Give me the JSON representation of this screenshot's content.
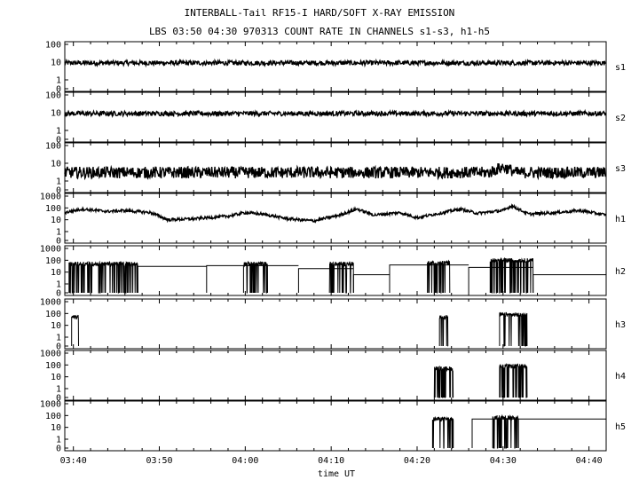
{
  "title": "INTERBALL-Tail RF15-I HARD/SOFT X-RAY EMISSION",
  "subtitle": "LBS 03:50 04:30 970313  COUNT RATE IN CHANNELS s1-s3, h1-h5",
  "chart_data": {
    "type": "line",
    "title": "INTERBALL-Tail RF15-I HARD/SOFT X-RAY EMISSION",
    "subtitle": "LBS 03:50 04:30 970313  COUNT RATE IN CHANNELS s1-s3, h1-h5",
    "xlabel": "time UT",
    "x_ticks": [
      "03:40",
      "03:50",
      "04:00",
      "04:10",
      "04:20",
      "04:30",
      "04:40"
    ],
    "x_tick_values": [
      220,
      230,
      240,
      250,
      260,
      270,
      280
    ],
    "xlim": [
      219,
      282
    ],
    "yscale": "log",
    "grid": false,
    "panels": [
      {
        "name": "s1",
        "yticks": [
          "100",
          "10",
          "1",
          "0"
        ],
        "ylim": [
          0,
          100
        ],
        "baseline": 9,
        "segments": [
          {
            "from": 219,
            "to": 282,
            "level": 9,
            "noise": 0.06
          }
        ]
      },
      {
        "name": "s2",
        "yticks": [
          "100",
          "10",
          "1",
          "0"
        ],
        "ylim": [
          0,
          100
        ],
        "baseline": 9,
        "segments": [
          {
            "from": 219,
            "to": 282,
            "level": 9,
            "noise": 0.06
          }
        ]
      },
      {
        "name": "s3",
        "yticks": [
          "100",
          "10",
          "1",
          "0"
        ],
        "ylim": [
          0,
          100
        ],
        "baseline": 3,
        "segments": [
          {
            "from": 219,
            "to": 282,
            "level": 3,
            "noise": 0.15
          }
        ],
        "peaks": [
          {
            "x": 270,
            "y": 6
          }
        ]
      },
      {
        "name": "h1",
        "yticks": [
          "1000",
          "100",
          "10",
          "1",
          "0"
        ],
        "ylim": [
          0,
          1000
        ],
        "profile": [
          [
            219,
            40
          ],
          [
            221,
            80
          ],
          [
            224,
            50
          ],
          [
            226,
            60
          ],
          [
            229,
            40
          ],
          [
            231,
            10
          ],
          [
            234,
            12
          ],
          [
            238,
            20
          ],
          [
            240,
            40
          ],
          [
            242,
            30
          ],
          [
            245,
            12
          ],
          [
            248,
            8
          ],
          [
            251,
            25
          ],
          [
            253,
            80
          ],
          [
            255,
            25
          ],
          [
            258,
            40
          ],
          [
            260,
            15
          ],
          [
            263,
            40
          ],
          [
            265,
            80
          ],
          [
            267,
            35
          ],
          [
            270,
            60
          ],
          [
            271,
            150
          ],
          [
            273,
            30
          ],
          [
            276,
            40
          ],
          [
            279,
            60
          ],
          [
            282,
            25
          ]
        ],
        "noise": 0.12
      },
      {
        "name": "h2",
        "yticks": [
          "1000",
          "100",
          "10",
          "1",
          "0"
        ],
        "ylim": [
          0,
          1000
        ],
        "bursts": [
          {
            "from": 219.5,
            "to": 227.5,
            "level": 50,
            "dropouts": true
          },
          {
            "from": 239.8,
            "to": 242.6,
            "level": 50,
            "dropouts": true
          },
          {
            "from": 249.8,
            "to": 252.6,
            "level": 50,
            "dropouts": true
          },
          {
            "from": 261.2,
            "to": 263.8,
            "level": 60,
            "dropouts": true
          },
          {
            "from": 268.5,
            "to": 273.5,
            "level": 100,
            "dropouts": true
          }
        ],
        "background": [
          [
            227.5,
            30
          ],
          [
            235.5,
            35
          ],
          [
            246.2,
            20
          ],
          [
            252.6,
            6
          ],
          [
            256.8,
            40
          ],
          [
            266.0,
            25
          ],
          [
            273.5,
            6
          ]
        ]
      },
      {
        "name": "h3",
        "yticks": [
          "1000",
          "100",
          "10",
          "1",
          "0"
        ],
        "ylim": [
          0,
          1000
        ],
        "bursts": [
          {
            "from": 219.8,
            "to": 220.6,
            "level": 50,
            "dropouts": false
          },
          {
            "from": 262.6,
            "to": 263.6,
            "level": 50,
            "dropouts": true
          },
          {
            "from": 269.6,
            "to": 272.8,
            "level": 80,
            "dropouts": true
          }
        ],
        "background": []
      },
      {
        "name": "h4",
        "yticks": [
          "1000",
          "100",
          "10",
          "1",
          "0"
        ],
        "ylim": [
          0,
          1000
        ],
        "bursts": [
          {
            "from": 262.0,
            "to": 264.2,
            "level": 50,
            "dropouts": true
          },
          {
            "from": 269.6,
            "to": 272.8,
            "level": 80,
            "dropouts": true
          }
        ],
        "background": []
      },
      {
        "name": "h5",
        "yticks": [
          "1000",
          "100",
          "10",
          "1",
          "0"
        ],
        "ylim": [
          0,
          1000
        ],
        "bursts": [
          {
            "from": 261.8,
            "to": 264.2,
            "level": 50,
            "dropouts": true
          },
          {
            "from": 268.8,
            "to": 271.8,
            "level": 70,
            "dropouts": true
          }
        ],
        "background": [
          [
            266.4,
            50
          ]
        ]
      }
    ]
  }
}
